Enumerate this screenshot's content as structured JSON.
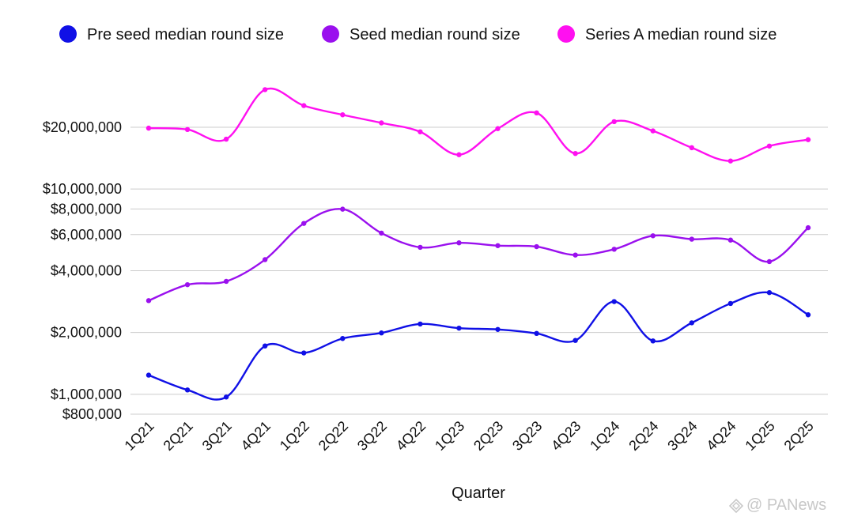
{
  "chart_data": {
    "type": "line",
    "xlabel": "Quarter",
    "ylabel": "",
    "y_scale": "log",
    "ylim": [
      700000,
      36000000
    ],
    "grid": true,
    "legend_position": "top",
    "categories": [
      "1Q21",
      "2Q21",
      "3Q21",
      "4Q21",
      "1Q22",
      "2Q22",
      "3Q22",
      "4Q22",
      "1Q23",
      "2Q23",
      "3Q23",
      "4Q23",
      "1Q24",
      "2Q24",
      "3Q24",
      "4Q24",
      "1Q25",
      "2Q25"
    ],
    "y_ticks": [
      {
        "value": 800000,
        "label": "$800,000"
      },
      {
        "value": 1000000,
        "label": "$1,000,000"
      },
      {
        "value": 2000000,
        "label": "$2,000,000"
      },
      {
        "value": 4000000,
        "label": "$4,000,000"
      },
      {
        "value": 6000000,
        "label": "$6,000,000"
      },
      {
        "value": 8000000,
        "label": "$8,000,000"
      },
      {
        "value": 10000000,
        "label": "$10,000,000"
      },
      {
        "value": 20000000,
        "label": "$20,000,000"
      }
    ],
    "series": [
      {
        "name": "Pre seed median round size",
        "color": "#1010e6",
        "values": [
          1240000,
          1050000,
          970000,
          1720000,
          1590000,
          1870000,
          1990000,
          2200000,
          2100000,
          2070000,
          1980000,
          1830000,
          2830000,
          1820000,
          2230000,
          2770000,
          3130000,
          2440000
        ]
      },
      {
        "name": "Seed median round size",
        "color": "#9a10ee",
        "values": [
          2860000,
          3420000,
          3550000,
          4530000,
          6800000,
          7980000,
          6100000,
          5200000,
          5470000,
          5300000,
          5240000,
          4770000,
          5090000,
          5920000,
          5700000,
          5640000,
          4430000,
          6480000
        ]
      },
      {
        "name": "Series A median round size",
        "color": "#ff10f0",
        "values": [
          19800000,
          19500000,
          17500000,
          30500000,
          25500000,
          23000000,
          21000000,
          19000000,
          14700000,
          19700000,
          23500000,
          14900000,
          21300000,
          19200000,
          15900000,
          13700000,
          16200000,
          17400000
        ]
      }
    ]
  },
  "watermark": {
    "text": "@ PANews"
  }
}
